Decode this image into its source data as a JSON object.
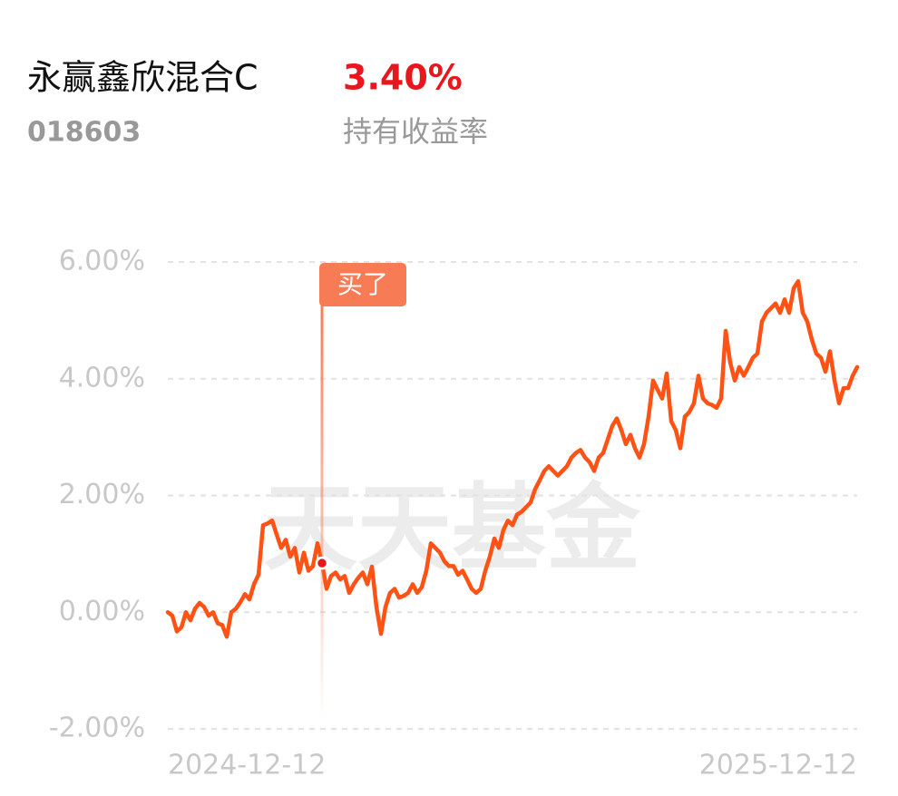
{
  "header": {
    "fund_name": "永赢鑫欣混合C",
    "return_value": "3.40%",
    "fund_code": "018603",
    "return_label": "持有收益率"
  },
  "chart_data": {
    "type": "line",
    "color": "#ff5214",
    "watermark": "天天基金",
    "grid": true,
    "ylim": [
      -2,
      6
    ],
    "yticks": [
      {
        "value": 6,
        "label": "6.00%"
      },
      {
        "value": 4,
        "label": "4.00%"
      },
      {
        "value": 2,
        "label": "2.00%"
      },
      {
        "value": 0,
        "label": "0.00%"
      },
      {
        "value": -2,
        "label": "-2.00%"
      }
    ],
    "annotation": {
      "text": "买了",
      "at": 34
    },
    "categories": [
      "2024-12-12",
      null,
      null,
      null,
      null,
      null,
      null,
      null,
      null,
      null,
      null,
      null,
      null,
      null,
      null,
      null,
      null,
      null,
      null,
      null,
      null,
      null,
      null,
      null,
      null,
      null,
      null,
      null,
      null,
      null,
      null,
      null,
      null,
      null,
      null,
      null,
      null,
      null,
      null,
      null,
      null,
      null,
      null,
      null,
      null,
      null,
      null,
      null,
      null,
      null,
      null,
      null,
      null,
      null,
      null,
      null,
      null,
      null,
      null,
      null,
      null,
      null,
      null,
      null,
      null,
      null,
      null,
      null,
      null,
      null,
      null,
      null,
      null,
      null,
      null,
      null,
      null,
      null,
      null,
      null,
      null,
      null,
      null,
      null,
      null,
      null,
      null,
      null,
      null,
      null,
      null,
      null,
      null,
      null,
      null,
      null,
      null,
      null,
      null,
      null,
      null,
      null,
      null,
      null,
      null,
      null,
      null,
      null,
      null,
      null,
      null,
      null,
      null,
      null,
      null,
      null,
      null,
      null,
      null,
      null,
      null,
      null,
      null,
      null,
      null,
      null,
      null,
      null,
      null,
      null,
      null,
      null,
      null,
      null,
      null,
      null,
      null,
      null,
      null,
      null,
      null,
      null,
      null,
      null,
      null,
      null,
      null,
      null,
      null,
      null,
      null,
      null,
      "2025-12-12"
    ],
    "values": [
      0.0,
      -0.06,
      -0.33,
      -0.26,
      0.0,
      -0.14,
      0.06,
      0.16,
      0.09,
      -0.06,
      0.0,
      -0.19,
      -0.22,
      -0.42,
      0.0,
      0.06,
      0.17,
      0.31,
      0.22,
      0.48,
      0.64,
      1.49,
      1.52,
      1.57,
      1.33,
      1.1,
      1.24,
      0.95,
      1.1,
      0.68,
      1.02,
      0.71,
      0.79,
      1.18,
      0.84,
      0.4,
      0.62,
      0.68,
      0.56,
      0.62,
      0.33,
      0.48,
      0.59,
      0.68,
      0.48,
      0.78,
      0.09,
      -0.37,
      0.09,
      0.33,
      0.4,
      0.25,
      0.28,
      0.33,
      0.48,
      0.33,
      0.43,
      0.71,
      1.18,
      1.1,
      1.02,
      0.87,
      0.79,
      0.79,
      0.64,
      0.71,
      0.56,
      0.4,
      0.33,
      0.4,
      0.71,
      0.95,
      1.26,
      1.1,
      1.41,
      1.57,
      1.49,
      1.67,
      1.72,
      1.8,
      1.88,
      2.11,
      2.26,
      2.42,
      2.5,
      2.42,
      2.34,
      2.42,
      2.5,
      2.65,
      2.73,
      2.78,
      2.65,
      2.57,
      2.42,
      2.65,
      2.73,
      2.96,
      3.19,
      3.32,
      3.12,
      2.88,
      3.04,
      2.81,
      2.65,
      2.88,
      3.35,
      3.97,
      3.81,
      3.66,
      4.09,
      3.27,
      3.12,
      2.81,
      3.35,
      3.43,
      3.58,
      4.05,
      3.66,
      3.58,
      3.55,
      3.5,
      3.66,
      4.82,
      4.28,
      3.97,
      4.2,
      4.05,
      4.2,
      4.36,
      4.43,
      4.98,
      5.13,
      5.21,
      5.29,
      5.13,
      5.36,
      5.13,
      5.55,
      5.67,
      5.13,
      4.98,
      4.67,
      4.43,
      4.36,
      4.12,
      4.47,
      3.97,
      3.58,
      3.84,
      3.84,
      4.05,
      4.2
    ]
  }
}
